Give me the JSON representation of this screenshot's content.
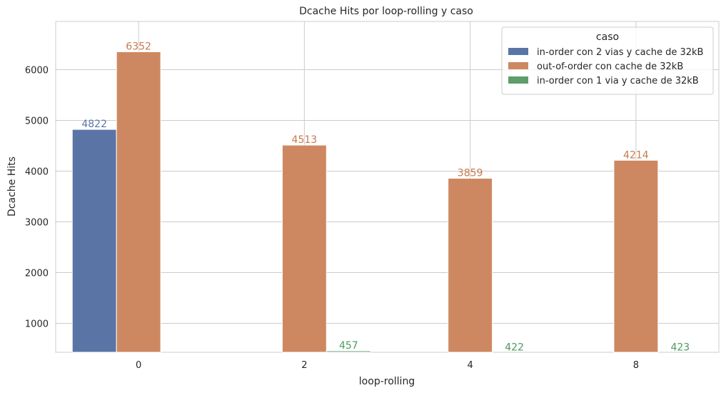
{
  "chart_data": {
    "type": "bar",
    "title": "Dcache Hits por loop-rolling y caso",
    "xlabel": "loop-rolling",
    "ylabel": "Dcache Hits",
    "categories": [
      "0",
      "2",
      "4",
      "8"
    ],
    "yticks": [
      1000,
      2000,
      3000,
      4000,
      5000,
      6000
    ],
    "ylim": [
      430,
      6950
    ],
    "grid": true,
    "legend": {
      "title": "caso",
      "placement": "top-right"
    },
    "series": [
      {
        "name": "in-order con 2 vias y cache de 32kB",
        "color": "#5a75a5",
        "label_color": "#5a75a5",
        "values": [
          4822,
          null,
          null,
          null
        ],
        "labels": [
          "4822",
          "",
          "",
          ""
        ]
      },
      {
        "name": "out-of-order con cache de 32kB",
        "color": "#cd8862",
        "label_color": "#c77a4f",
        "values": [
          6352,
          4513,
          3859,
          4214
        ],
        "labels": [
          "6352",
          "4513",
          "3859",
          "4214"
        ]
      },
      {
        "name": "in-order con 1 via y cache de 32kB",
        "color": "#5e9e6c",
        "label_color": "#4f9a5e",
        "values": [
          null,
          457,
          422,
          423
        ],
        "labels": [
          "",
          "457",
          "422",
          "423"
        ]
      }
    ]
  }
}
